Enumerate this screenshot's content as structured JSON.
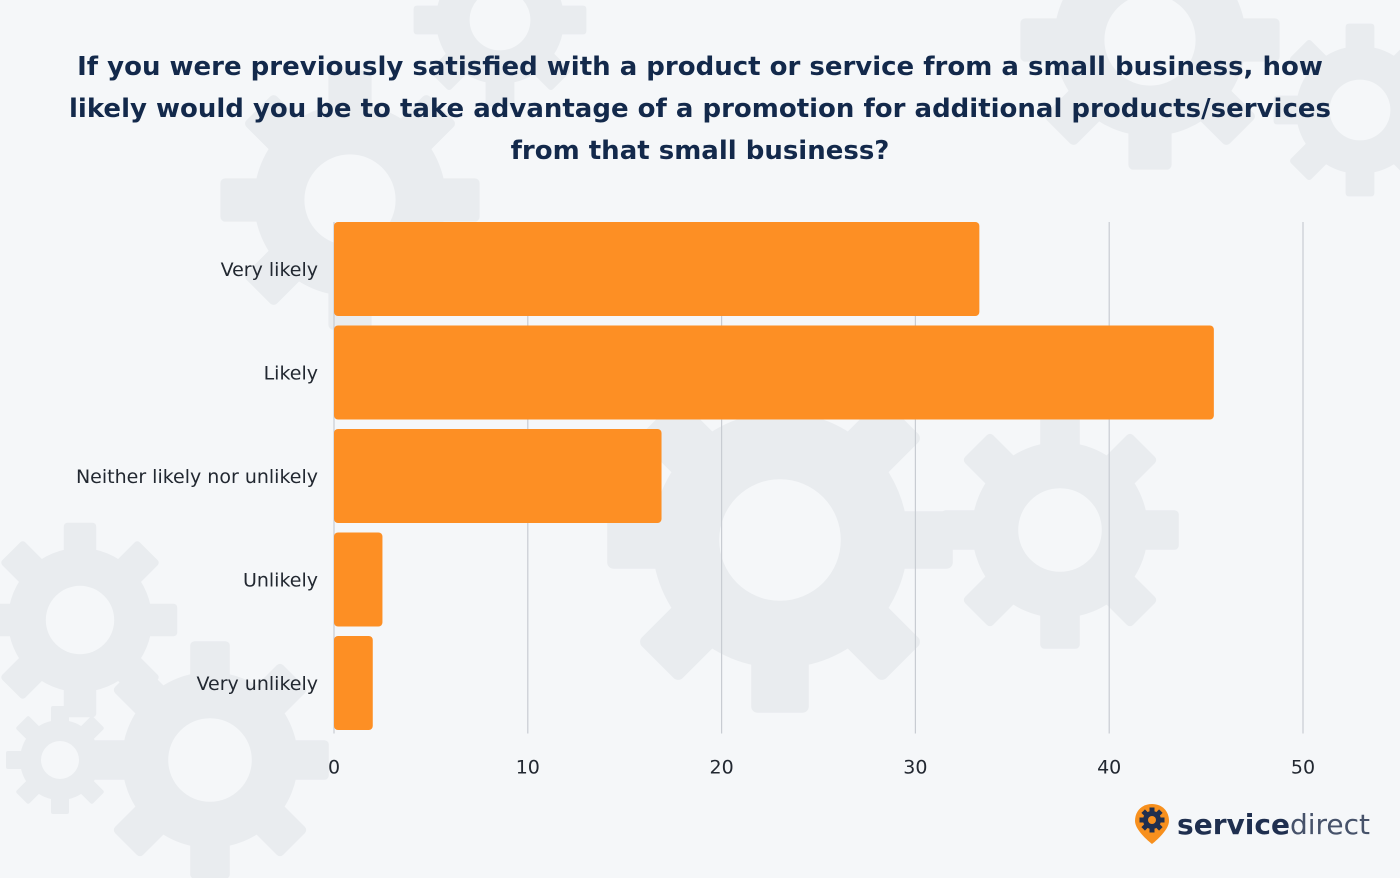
{
  "title": "If you were previously satisfied with a product or service from a small business, how likely would you be to take advantage of a promotion for additional products/services from that small business?",
  "brand": {
    "part1": "service",
    "part2": "direct",
    "icon": "gear-pin-icon",
    "color_primary": "#1f2f4f",
    "color_accent": "#f7901e"
  },
  "colors": {
    "bar": "#fd8f24",
    "grid": "#c8ccd2",
    "text": "#222831",
    "title": "#13294b",
    "background": "#f5f7f9"
  },
  "chart_data": {
    "type": "bar",
    "orientation": "horizontal",
    "categories": [
      "Very likely",
      "Likely",
      "Neither likely nor unlikely",
      "Unlikely",
      "Very unlikely"
    ],
    "values": [
      33.3,
      45.4,
      16.9,
      2.5,
      2.0
    ],
    "xlim": [
      0,
      50
    ],
    "xticks": [
      0,
      10,
      20,
      30,
      40,
      50
    ],
    "grid": true,
    "legend": "none"
  }
}
